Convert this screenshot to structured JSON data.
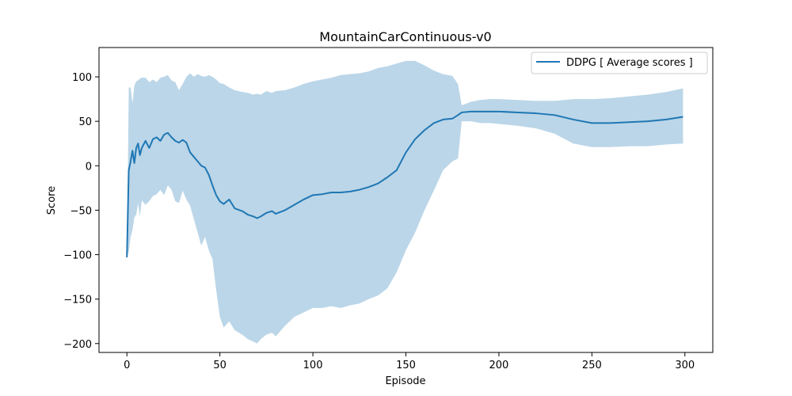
{
  "chart_data": {
    "type": "line",
    "title": "MountainCarContinuous-v0",
    "xlabel": "Episode",
    "ylabel": "Score",
    "xlim": [
      -15,
      315
    ],
    "ylim": [
      -210,
      133
    ],
    "xticks": [
      0,
      50,
      100,
      150,
      200,
      250,
      300
    ],
    "yticks": [
      -200,
      -150,
      -100,
      -50,
      0,
      50,
      100
    ],
    "legend_position": "top-right",
    "grid": false,
    "colors": {
      "line": "#1f77b4",
      "band": "#1f77b4",
      "band_opacity": 0.3
    },
    "series": [
      {
        "name": "DDPG [ Average scores ]",
        "x": [
          0,
          1,
          2,
          3,
          4,
          5,
          6,
          7,
          8,
          10,
          12,
          14,
          16,
          18,
          20,
          22,
          24,
          26,
          28,
          30,
          32,
          34,
          36,
          38,
          40,
          42,
          44,
          46,
          48,
          50,
          52,
          55,
          58,
          62,
          65,
          68,
          70,
          72,
          75,
          78,
          80,
          85,
          90,
          95,
          100,
          105,
          110,
          115,
          120,
          125,
          130,
          135,
          140,
          145,
          150,
          155,
          160,
          165,
          170,
          175,
          178,
          180,
          185,
          190,
          195,
          200,
          210,
          220,
          230,
          240,
          250,
          260,
          270,
          280,
          290,
          299
        ],
        "y": [
          -103,
          -5,
          5,
          17,
          3,
          20,
          25,
          12,
          20,
          28,
          20,
          30,
          32,
          28,
          35,
          37,
          32,
          28,
          26,
          29,
          26,
          15,
          10,
          5,
          0,
          -2,
          -10,
          -22,
          -33,
          -40,
          -43,
          -38,
          -48,
          -51,
          -55,
          -57,
          -59,
          -57,
          -53,
          -51,
          -54,
          -50,
          -44,
          -38,
          -33,
          -32,
          -30,
          -30,
          -29,
          -27,
          -24,
          -20,
          -13,
          -5,
          15,
          30,
          40,
          48,
          52,
          53,
          57,
          60,
          61,
          61,
          61,
          61,
          60,
          59,
          57,
          52,
          48,
          48,
          49,
          50,
          52,
          55
        ],
        "upper": [
          -103,
          88,
          88,
          70,
          90,
          95,
          96,
          98,
          99,
          99,
          94,
          97,
          94,
          99,
          100,
          102,
          96,
          94,
          85,
          92,
          100,
          104,
          100,
          103,
          101,
          100,
          102,
          100,
          97,
          93,
          92,
          88,
          85,
          83,
          82,
          80,
          81,
          80,
          84,
          82,
          84,
          85,
          88,
          92,
          95,
          97,
          99,
          102,
          103,
          104,
          106,
          110,
          112,
          115,
          118,
          118,
          113,
          107,
          103,
          101,
          92,
          68,
          72,
          74,
          75,
          75,
          74,
          73,
          73,
          75,
          75,
          76,
          78,
          80,
          83,
          87
        ],
        "lower": [
          -103,
          -97,
          -80,
          -72,
          -58,
          -55,
          -42,
          -57,
          -39,
          -44,
          -40,
          -34,
          -32,
          -27,
          -33,
          -22,
          -27,
          -40,
          -42,
          -28,
          -38,
          -45,
          -60,
          -75,
          -90,
          -80,
          -95,
          -105,
          -140,
          -170,
          -182,
          -175,
          -185,
          -190,
          -195,
          -198,
          -200,
          -195,
          -190,
          -188,
          -192,
          -180,
          -170,
          -165,
          -160,
          -160,
          -158,
          -160,
          -157,
          -155,
          -150,
          -146,
          -138,
          -120,
          -95,
          -75,
          -50,
          -28,
          -5,
          5,
          8,
          50,
          50,
          48,
          48,
          47,
          45,
          42,
          36,
          25,
          21,
          21,
          22,
          22,
          24,
          25
        ]
      }
    ]
  }
}
